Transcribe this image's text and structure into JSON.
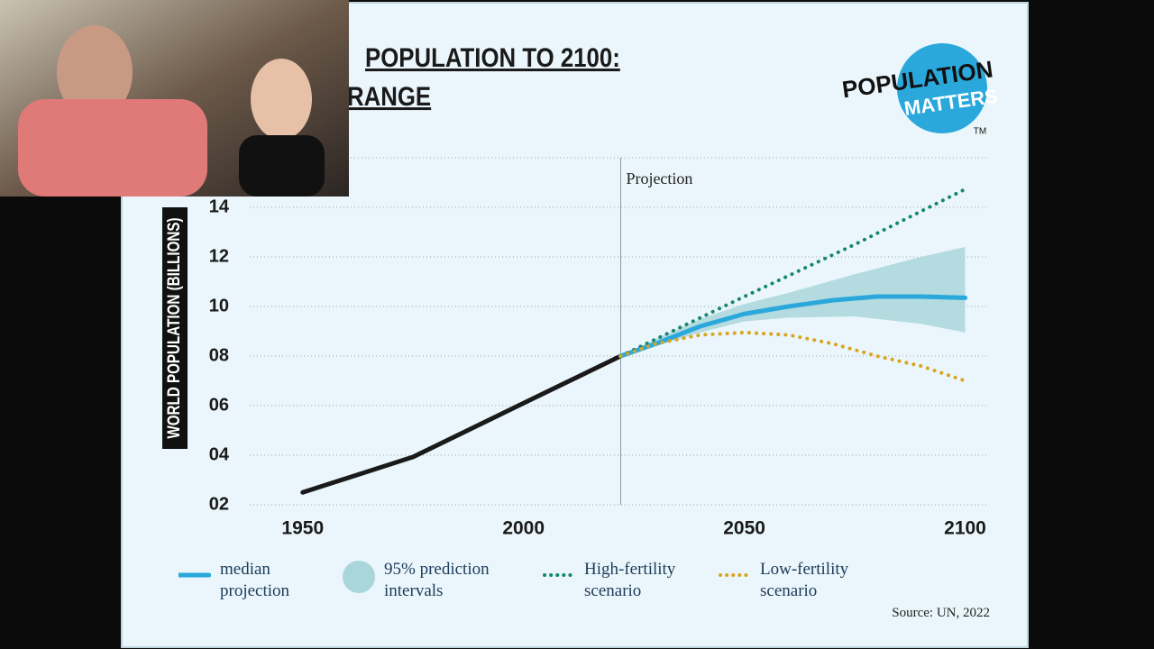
{
  "chart_data": {
    "type": "line",
    "title_lines": [
      "POPULATION TO 2100:",
      "RANGE"
    ],
    "logo": [
      "POPULATION",
      "MATTERS"
    ],
    "logo_mark": "TM",
    "y_label": "WORLD POPULATION (BILLIONS)",
    "annotation": {
      "text": "Projection",
      "x": 2022
    },
    "source": "Source: UN, 2022",
    "xlim": [
      1938,
      2105
    ],
    "xticks": [
      1950,
      2000,
      2050,
      2100
    ],
    "ylim": [
      2,
      16
    ],
    "yticks": [
      {
        "value": 2,
        "label": "02"
      },
      {
        "value": 4,
        "label": "04"
      },
      {
        "value": 6,
        "label": "06"
      },
      {
        "value": 8,
        "label": "08"
      },
      10,
      12,
      14
    ],
    "grid": true,
    "history": {
      "color": "#1a1a1a",
      "x": [
        1950,
        1975,
        2000,
        2022
      ],
      "values": [
        2.5,
        3.93,
        6.1,
        8.0
      ]
    },
    "band": {
      "name": "95% prediction intervals",
      "color": "#a9d6da",
      "x": [
        2022,
        2030,
        2040,
        2050,
        2060,
        2075,
        2090,
        2100
      ],
      "lower": [
        8.0,
        8.4,
        8.95,
        9.4,
        9.55,
        9.6,
        9.3,
        8.95
      ],
      "upper": [
        8.0,
        8.7,
        9.5,
        10.1,
        10.55,
        11.3,
        12.0,
        12.4
      ]
    },
    "series": [
      {
        "name": "median projection",
        "color": "#2aa8dc",
        "style": "solid",
        "x": [
          2022,
          2030,
          2040,
          2050,
          2060,
          2070,
          2080,
          2090,
          2100
        ],
        "values": [
          8.0,
          8.5,
          9.2,
          9.7,
          10.0,
          10.25,
          10.4,
          10.4,
          10.35
        ]
      },
      {
        "name": "High-fertility scenario",
        "color": "#16876f",
        "style": "dotted",
        "x": [
          2022,
          2050,
          2075,
          2100
        ],
        "values": [
          8.0,
          10.4,
          12.5,
          14.73
        ]
      },
      {
        "name": "Low-fertility scenario",
        "color": "#d9a520",
        "style": "dotted",
        "x": [
          2022,
          2030,
          2040,
          2050,
          2060,
          2070,
          2080,
          2090,
          2100
        ],
        "values": [
          8.0,
          8.5,
          8.85,
          8.95,
          8.85,
          8.5,
          8.0,
          7.6,
          7.0
        ]
      }
    ]
  }
}
